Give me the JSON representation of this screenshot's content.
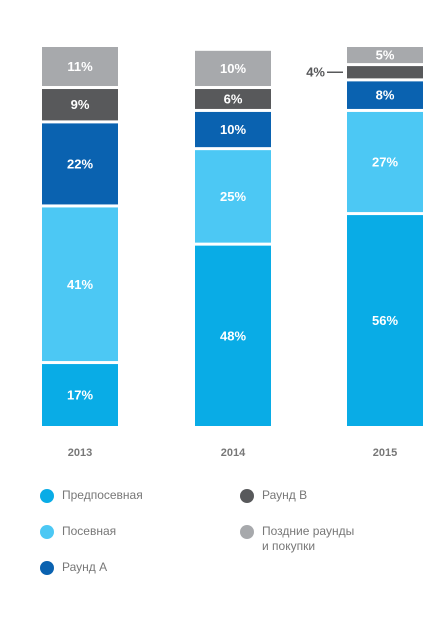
{
  "chart_data": {
    "type": "bar",
    "stacked": true,
    "categories": [
      "2013",
      "2014",
      "2015"
    ],
    "series": [
      {
        "name": "Предпосевная",
        "color": "#09ace6",
        "values": [
          17,
          48,
          56
        ]
      },
      {
        "name": "Посевная",
        "color": "#4cc8f4",
        "values": [
          41,
          25,
          27
        ]
      },
      {
        "name": "Раунд А",
        "color": "#0a62b0",
        "values": [
          22,
          10,
          8
        ]
      },
      {
        "name": "Раунд B",
        "color": "#58595b",
        "values": [
          9,
          6,
          4
        ]
      },
      {
        "name": "Поздние раунды\nи покупки",
        "color": "#a7a9ac",
        "values": [
          11,
          10,
          5
        ]
      }
    ],
    "data_labels": [
      [
        "17%",
        "48%",
        "56%"
      ],
      [
        "41%",
        "25%",
        "27%"
      ],
      [
        "22%",
        "10%",
        "8%"
      ],
      [
        "9%",
        "6%",
        "4%"
      ],
      [
        "11%",
        "10%",
        "5%"
      ]
    ],
    "ylim": [
      0,
      100
    ],
    "grid": false,
    "legend_placement": "bottom"
  }
}
